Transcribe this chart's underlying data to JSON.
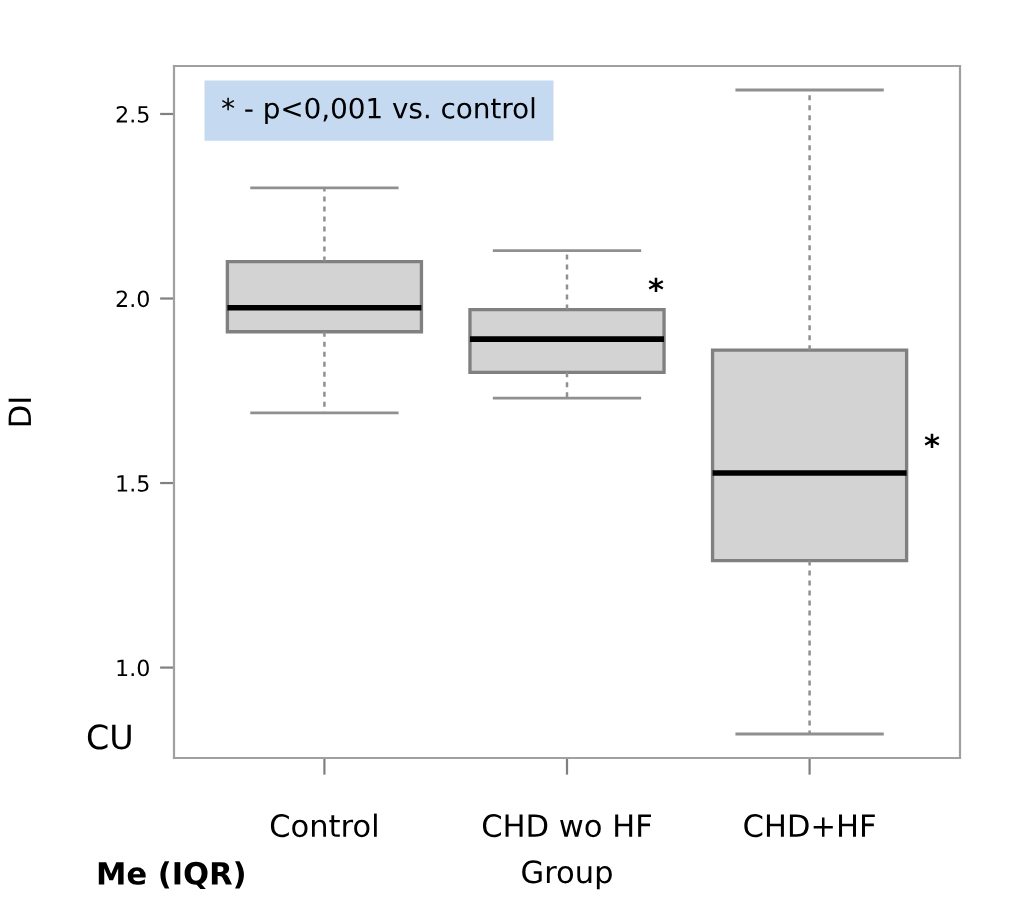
{
  "chart_data": {
    "type": "box",
    "xlabel": "Group",
    "ylabel": "DI",
    "categories": [
      "Control",
      "CHD wo HF",
      "CHD+HF"
    ],
    "boxes": [
      {
        "low": 1.69,
        "q1": 1.91,
        "median": 1.975,
        "q3": 2.1,
        "high": 2.3
      },
      {
        "low": 1.73,
        "q1": 1.8,
        "median": 1.89,
        "q3": 1.97,
        "high": 2.13
      },
      {
        "low": 0.82,
        "q1": 1.29,
        "median": 1.527,
        "q3": 1.86,
        "high": 2.565
      }
    ],
    "color": "#d3d3d3",
    "ylim": [
      0.755,
      2.63
    ],
    "yticks": [
      {
        "value": 1,
        "label": "1.0"
      },
      1.5,
      {
        "value": 2,
        "label": "2.0"
      },
      2.5
    ],
    "grid": false,
    "legend": false,
    "annotations": [
      "* - p<0,001 vs. control",
      "*",
      "*",
      "CU",
      "Me (IQR)"
    ]
  }
}
